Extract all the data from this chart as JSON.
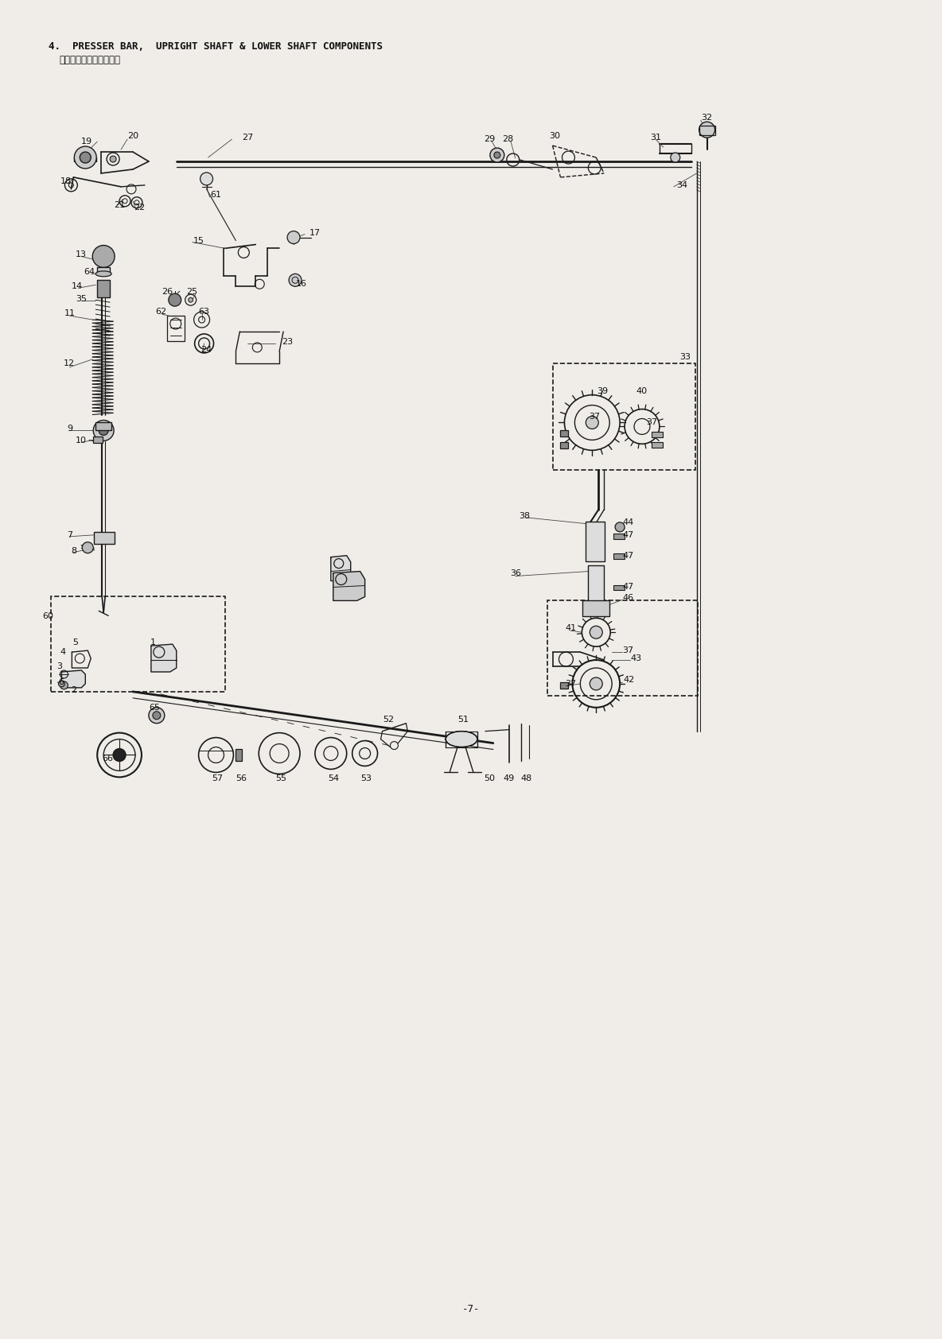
{
  "title_line1": "4.  PRESSER BAR,  UPRIGHT SHAFT & LOWER SHAFT COMPONENTS",
  "title_line2": "押え棒・立軸・下軸関係",
  "page_number": "-7-",
  "bg_color": "#f0ede8",
  "line_color": "#1a1a1a",
  "text_color": "#111111",
  "fig_width": 11.84,
  "fig_height": 16.84,
  "dpi": 100
}
